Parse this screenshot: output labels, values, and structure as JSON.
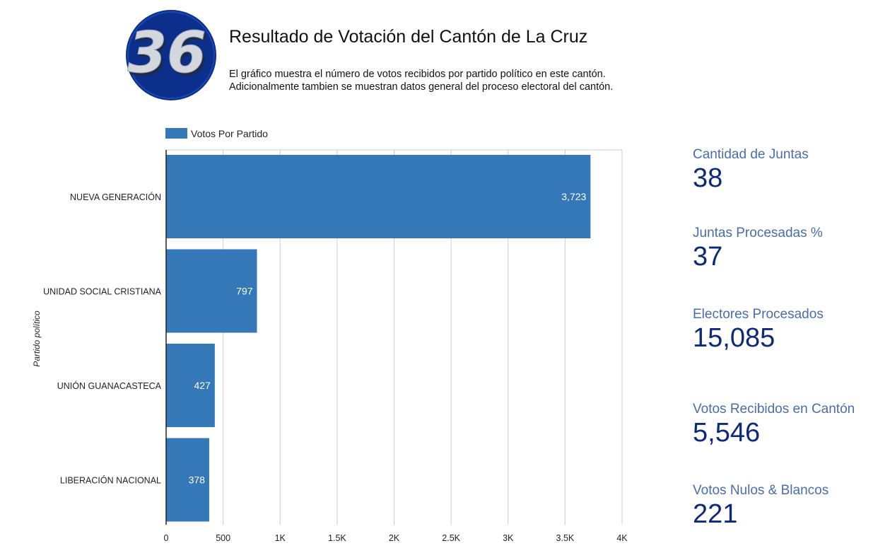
{
  "header": {
    "logo_text": "36",
    "title": "Resultado de Votación del Cantón de La Cruz",
    "subtitle_lines": [
      "El gráfico muestra el número de votos recibidos por partido político en este cantón.",
      "Adicionalmente tambien se muestran datos general del proceso electoral del cantón."
    ]
  },
  "colors": {
    "bar": "#3478b8",
    "stat_label": "#4a6cad",
    "stat_value": "#0d2a7a",
    "logo_blue": "#0d2f8c"
  },
  "chart_data": {
    "type": "bar",
    "orientation": "horizontal",
    "categories": [
      "NUEVA GENERACIÓN",
      "UNIDAD SOCIAL CRISTIANA",
      "UNIÓN GUANACASTECA",
      "LIBERACIÓN NACIONAL"
    ],
    "series": [
      {
        "name": "Votos Por Partido",
        "values": [
          3723,
          797,
          427,
          378
        ]
      }
    ],
    "data_labels": [
      "3,723",
      "797",
      "427",
      "378"
    ],
    "ylabel": "Partido político",
    "xlim": [
      0,
      4000
    ],
    "x_ticks": [
      0,
      500,
      1000,
      1500,
      2000,
      2500,
      3000,
      3500,
      4000
    ],
    "x_tick_labels": [
      "0",
      "500",
      "1K",
      "1.5K",
      "2K",
      "2.5K",
      "3K",
      "3.5K",
      "4K"
    ],
    "grid": true,
    "legend_position": "top-left"
  },
  "stats": [
    {
      "label": "Cantidad de Juntas",
      "value": "38"
    },
    {
      "label": "Juntas Procesadas %",
      "value": "37"
    },
    {
      "label": "Electores Procesados",
      "value": "15,085"
    },
    {
      "label": "Votos Recibidos en Cantón",
      "value": "5,546"
    },
    {
      "label": "Votos Nulos & Blancos",
      "value": "221"
    }
  ]
}
